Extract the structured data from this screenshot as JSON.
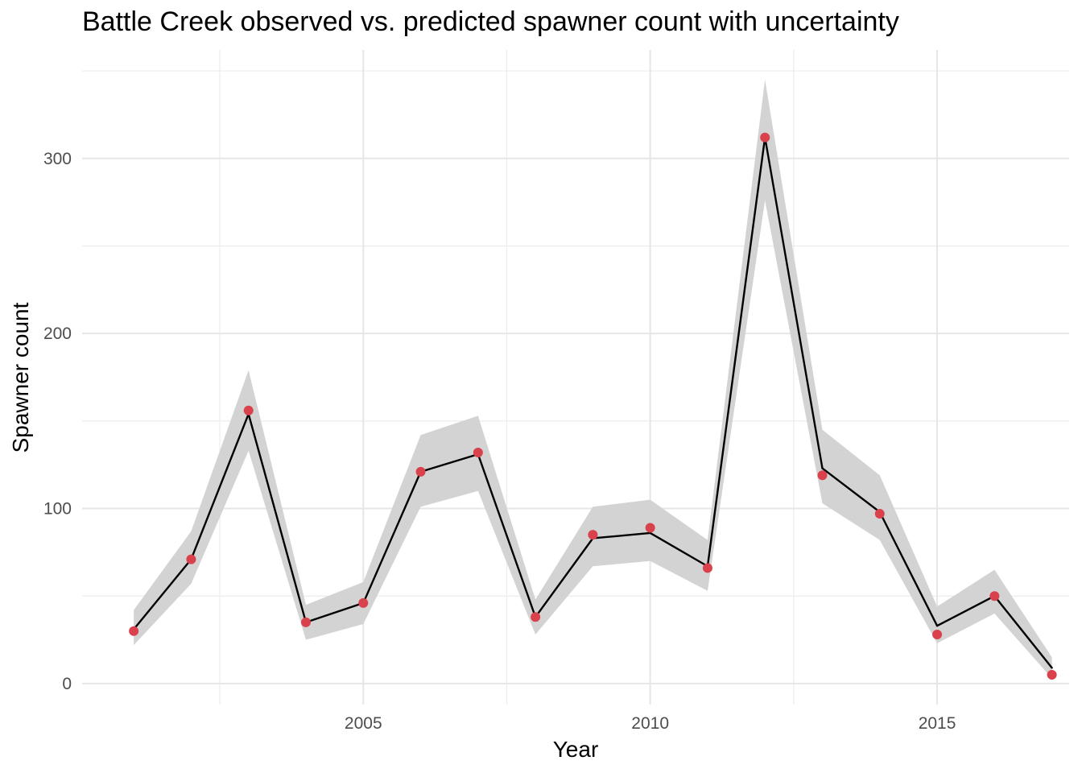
{
  "chart_data": {
    "type": "line",
    "title": "Battle Creek observed vs. predicted spawner count with uncertainty",
    "xlabel": "Year",
    "ylabel": "Spawner count",
    "x_ticks": [
      2005,
      2010,
      2015
    ],
    "y_ticks": [
      0,
      100,
      200,
      300
    ],
    "xlim": [
      2000.1,
      2017.3
    ],
    "ylim": [
      -12,
      362
    ],
    "grid": true,
    "legend": "none",
    "x": [
      2001,
      2002,
      2003,
      2004,
      2005,
      2006,
      2007,
      2008,
      2009,
      2010,
      2011,
      2012,
      2013,
      2014,
      2015,
      2016,
      2017
    ],
    "series": [
      {
        "kind": "predicted",
        "values": [
          31,
          71,
          154,
          35,
          46,
          121,
          131,
          38,
          83,
          86,
          67,
          312,
          123,
          98,
          33,
          50,
          9
        ],
        "lower": [
          22,
          57,
          133,
          25,
          34,
          101,
          110,
          28,
          67,
          70,
          53,
          276,
          103,
          82,
          23,
          40,
          3
        ],
        "upper": [
          42,
          87,
          179,
          45,
          58,
          142,
          153,
          48,
          101,
          105,
          82,
          345,
          145,
          119,
          44,
          65,
          15
        ],
        "color": "#000000",
        "band_color": "#d3d3d3"
      },
      {
        "kind": "observed",
        "values": [
          30,
          71,
          156,
          35,
          46,
          121,
          132,
          38,
          85,
          89,
          66,
          312,
          119,
          97,
          28,
          50,
          5
        ],
        "color": "#d9414d"
      }
    ]
  }
}
